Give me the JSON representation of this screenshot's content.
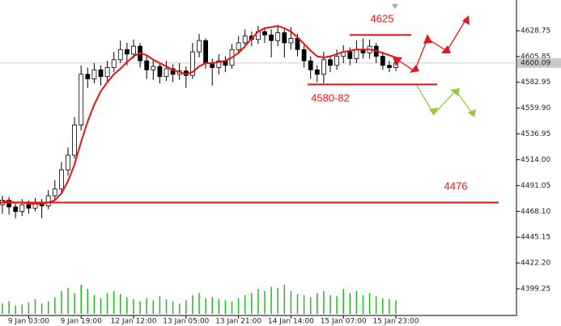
{
  "chart_data": {
    "type": "candlestick",
    "categories": [
      null,
      null,
      null,
      null,
      "9 Jan 03:00",
      null,
      null,
      null,
      null,
      null,
      null,
      null,
      "9 Jan 19:00",
      null,
      null,
      null,
      null,
      null,
      null,
      null,
      "12 Jan 12:00",
      null,
      null,
      null,
      null,
      null,
      null,
      null,
      "13 Jan 05:00",
      null,
      null,
      null,
      null,
      null,
      null,
      null,
      "13 Jan 21:00",
      null,
      null,
      null,
      null,
      null,
      null,
      null,
      "14 Jan 14:00",
      null,
      null,
      null,
      null,
      null,
      null,
      null,
      "15 Jan 07:00",
      null,
      null,
      null,
      null,
      null,
      null,
      null,
      "15 Jan 23:00"
    ],
    "open": [
      4474,
      4478,
      4472,
      4468,
      4474,
      4471,
      4476,
      4473,
      4482,
      4488,
      4505,
      4518,
      4545,
      4590,
      4586,
      4594,
      4588,
      4596,
      4603,
      4612,
      4608,
      4615,
      4602,
      4594,
      4597,
      4588,
      4595,
      4590,
      4593,
      4589,
      4610,
      4620,
      4600,
      4596,
      4602,
      4598,
      4612,
      4618,
      4624,
      4621,
      4628,
      4625,
      4620,
      4627,
      4618,
      4622,
      4612,
      4602,
      4594,
      4590,
      4603,
      4598,
      4606,
      4610,
      4604,
      4612,
      4609,
      4615,
      4606,
      4598,
      4596
    ],
    "high": [
      4482,
      4481,
      4476,
      4479,
      4478,
      4480,
      4479,
      4487,
      4496,
      4512,
      4525,
      4552,
      4598,
      4596,
      4600,
      4598,
      4602,
      4610,
      4620,
      4618,
      4621,
      4618,
      4606,
      4603,
      4600,
      4602,
      4599,
      4600,
      4597,
      4618,
      4626,
      4622,
      4604,
      4608,
      4606,
      4617,
      4624,
      4630,
      4628,
      4633,
      4632,
      4630,
      4634,
      4630,
      4632,
      4626,
      4616,
      4606,
      4598,
      4610,
      4607,
      4612,
      4616,
      4614,
      4620,
      4622,
      4621,
      4618,
      4610,
      4602,
      4604
    ],
    "low": [
      4466,
      4465,
      4462,
      4464,
      4466,
      4468,
      4462,
      4470,
      4478,
      4485,
      4500,
      4515,
      4540,
      4578,
      4582,
      4580,
      4584,
      4592,
      4600,
      4598,
      4604,
      4596,
      4586,
      4585,
      4582,
      4584,
      4583,
      4585,
      4578,
      4586,
      4605,
      4595,
      4580,
      4590,
      4592,
      4595,
      4608,
      4614,
      4615,
      4617,
      4618,
      4605,
      4615,
      4605,
      4612,
      4606,
      4596,
      4586,
      4583,
      4582,
      4592,
      4594,
      4600,
      4598,
      4600,
      4604,
      4604,
      4600,
      4594,
      4592,
      4593
    ],
    "close": [
      4478,
      4472,
      4468,
      4474,
      4471,
      4476,
      4473,
      4482,
      4488,
      4505,
      4518,
      4545,
      4590,
      4586,
      4594,
      4588,
      4596,
      4603,
      4612,
      4608,
      4615,
      4602,
      4594,
      4597,
      4588,
      4595,
      4590,
      4593,
      4589,
      4610,
      4620,
      4600,
      4596,
      4602,
      4598,
      4612,
      4618,
      4624,
      4621,
      4628,
      4625,
      4620,
      4627,
      4618,
      4622,
      4612,
      4602,
      4594,
      4590,
      4603,
      4598,
      4606,
      4610,
      4604,
      4612,
      4609,
      4615,
      4606,
      4598,
      4596,
      4600.09
    ],
    "moving_average": [
      4477,
      4477,
      4476,
      4476,
      4475,
      4475,
      4475,
      4476,
      4478,
      4484,
      4495,
      4510,
      4530,
      4548,
      4563,
      4575,
      4583,
      4590,
      4595,
      4601,
      4606,
      4609,
      4607,
      4603,
      4600,
      4597,
      4594,
      4592,
      4590,
      4592,
      4597,
      4600,
      4600,
      4601,
      4602,
      4605,
      4609,
      4615,
      4622,
      4628,
      4631,
      4632,
      4633,
      4631,
      4628,
      4623,
      4617,
      4611,
      4606,
      4605,
      4606,
      4608,
      4610,
      4611,
      4612,
      4612,
      4612,
      4611,
      4609,
      4607,
      4605
    ],
    "volume": [
      10,
      12,
      8,
      9,
      11,
      14,
      10,
      12,
      16,
      22,
      25,
      20,
      28,
      24,
      18,
      15,
      20,
      22,
      19,
      16,
      14,
      12,
      15,
      13,
      17,
      14,
      12,
      10,
      13,
      18,
      20,
      15,
      16,
      14,
      13,
      12,
      15,
      18,
      20,
      24,
      22,
      26,
      25,
      28,
      22,
      19,
      18,
      16,
      20,
      22,
      18,
      17,
      24,
      20,
      22,
      18,
      20,
      17,
      15,
      14,
      13
    ],
    "last_price": 4600.09,
    "ylim": [
      4375.5,
      4656.1
    ],
    "yticks": [
      4399.25,
      4422.2,
      4445.15,
      4468.1,
      4491.05,
      4514,
      4536.95,
      4559.9,
      4582.95,
      4605.85,
      4628.75
    ],
    "ytick_labels": [
      "4399.25",
      "4422.20",
      "4445.15",
      "4468.10",
      "4491.05",
      "4514.00",
      "4536.95",
      "4559.90",
      "4582.95",
      "4605.85",
      "4628.75"
    ],
    "annotations": [
      {
        "label": "4625",
        "value": 4625
      },
      {
        "label": "4580-82",
        "value": 4581
      },
      {
        "label": "4476",
        "value": 4476
      }
    ],
    "up_color": "#ffffff",
    "down_color": "#000000",
    "ma_color": "#ee1111",
    "volume_color": "#22bb22",
    "level_color": "#ee1111"
  }
}
